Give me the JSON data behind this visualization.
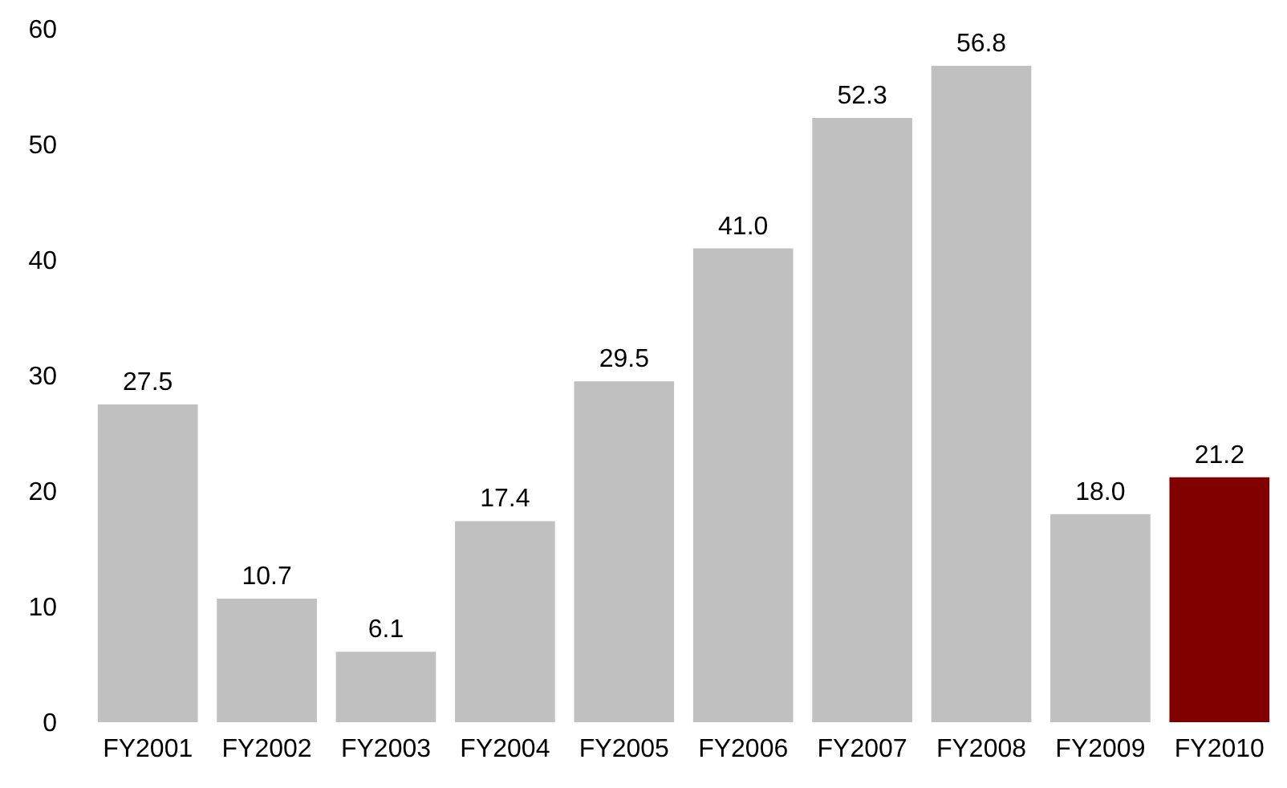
{
  "chart_data": {
    "type": "bar",
    "categories": [
      "FY2001",
      "FY2002",
      "FY2003",
      "FY2004",
      "FY2005",
      "FY2006",
      "FY2007",
      "FY2008",
      "FY2009",
      "FY2010"
    ],
    "values": [
      27.5,
      10.7,
      6.1,
      17.4,
      29.5,
      41.0,
      52.3,
      56.8,
      18.0,
      21.2
    ],
    "colors": [
      "#c0c0c0",
      "#c0c0c0",
      "#c0c0c0",
      "#c0c0c0",
      "#c0c0c0",
      "#c0c0c0",
      "#c0c0c0",
      "#c0c0c0",
      "#c0c0c0",
      "#800000"
    ],
    "value_labels": [
      "27.5",
      "10.7",
      "6.1",
      "17.4",
      "29.5",
      "41.0",
      "52.3",
      "56.8",
      "18.0",
      "21.2"
    ],
    "ylim": [
      0,
      60
    ],
    "yticks": [
      0,
      10,
      20,
      30,
      40,
      50,
      60
    ]
  }
}
